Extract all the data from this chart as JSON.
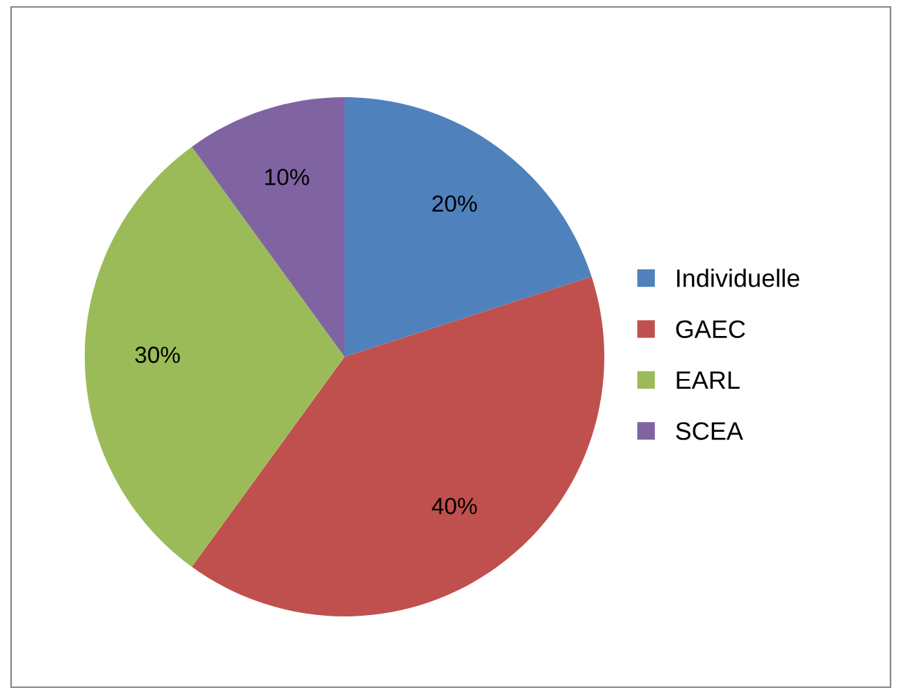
{
  "chart_data": {
    "type": "pie",
    "categories": [
      "Individuelle",
      "GAEC",
      "EARL",
      "SCEA"
    ],
    "values": [
      20,
      40,
      30,
      10
    ],
    "colors": [
      "#4f81bd",
      "#c0504d",
      "#9bbb59",
      "#8064a2"
    ],
    "value_labels": [
      "20%",
      "40%",
      "30%",
      "10%"
    ],
    "legend": "right"
  }
}
